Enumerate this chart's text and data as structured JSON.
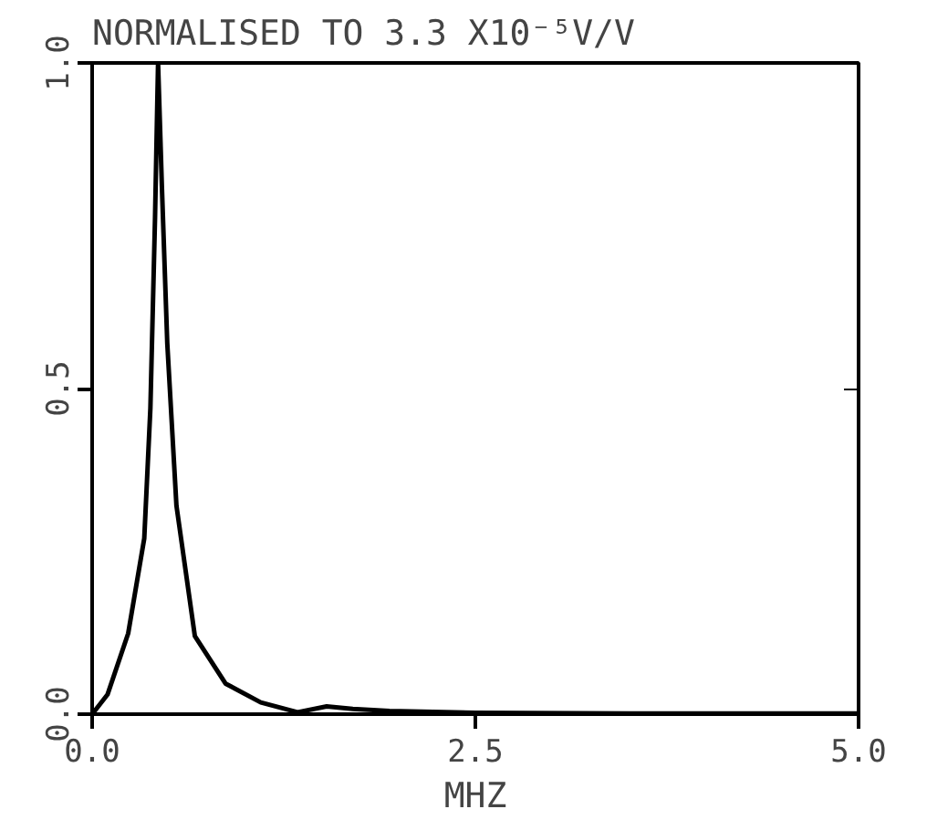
{
  "chart_data": {
    "type": "line",
    "title": "NORMALISED TO 3.3 X10⁻⁵V/V",
    "xlabel": "MHZ",
    "x": [
      0,
      0.1,
      0.235,
      0.34,
      0.38,
      0.41,
      0.43,
      0.455,
      0.49,
      0.55,
      0.67,
      0.87,
      1.1,
      1.34,
      1.53,
      1.7,
      1.94,
      2.5,
      3.5,
      4.5,
      5.0
    ],
    "series": [
      {
        "color": "#000000",
        "values": [
          0,
          0.03,
          0.124,
          0.27,
          0.47,
          0.76,
          1.0,
          0.81,
          0.57,
          0.32,
          0.12,
          0.047,
          0.018,
          0.003,
          0.012,
          0.008,
          0.005,
          0.002,
          0.001,
          0.001,
          0.001
        ]
      }
    ],
    "xlim": [
      0,
      5.0
    ],
    "ylim": [
      0,
      1.0
    ],
    "xticks": [
      {
        "value": 0,
        "label": "0.0"
      },
      {
        "value": 2.5,
        "label": "2.5"
      },
      {
        "value": 5,
        "label": "5.0"
      }
    ],
    "yticks": [
      {
        "value": 0,
        "label": "0.0"
      },
      {
        "value": 0.5,
        "label": "0.5"
      },
      {
        "value": 1,
        "label": "1.0"
      }
    ],
    "grid": false,
    "marker": "none",
    "line_style": "solid"
  }
}
